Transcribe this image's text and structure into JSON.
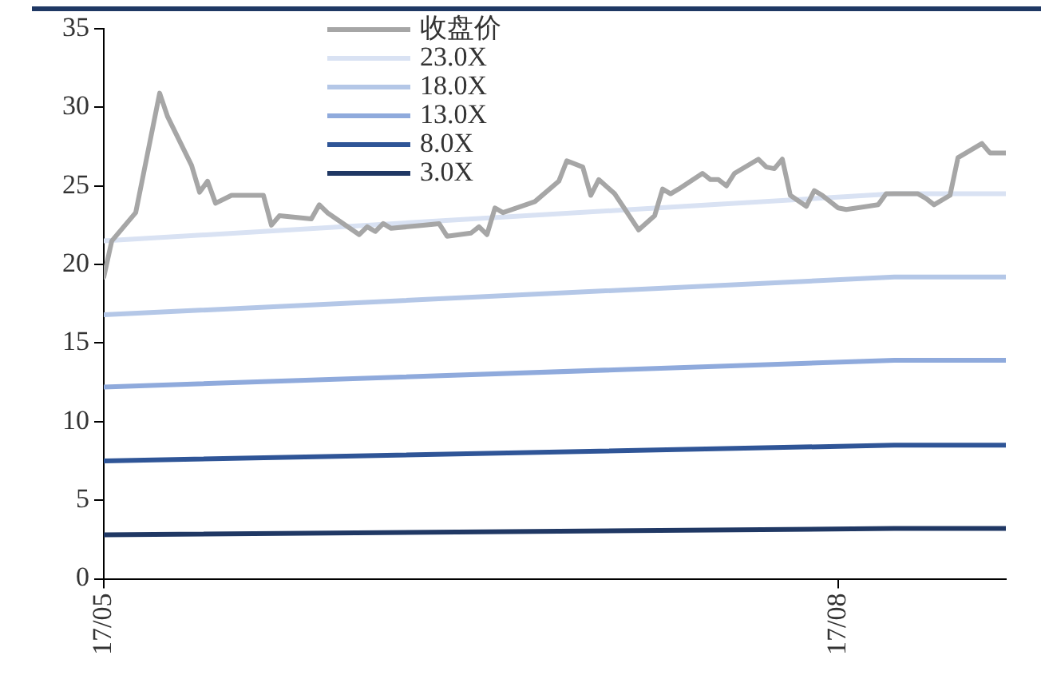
{
  "chart_data": {
    "type": "line",
    "xlim": [
      "--05-01",
      "--08-22"
    ],
    "xticks": [
      {
        "value": "--05-01",
        "label": "17/05"
      },
      {
        "value": "--08-01",
        "label": "17/08"
      }
    ],
    "ylim": [
      0,
      35
    ],
    "yticks": [
      0,
      5,
      10,
      15,
      20,
      25,
      30,
      35
    ],
    "grid": false,
    "legend": "top",
    "marker": "none",
    "line_style": "solid",
    "series": [
      {
        "name": "收盘价",
        "color": "#a6a6a6",
        "x": [
          "--05-01",
          "--05-02",
          "--05-05",
          "--05-08",
          "--05-09",
          "--05-12",
          "--05-13",
          "--05-14",
          "--05-15",
          "--05-17",
          "--05-21",
          "--05-22",
          "--05-23",
          "--05-27",
          "--05-28",
          "--05-29",
          "--06-02",
          "--06-03",
          "--06-04",
          "--06-05",
          "--06-06",
          "--06-10",
          "--06-12",
          "--06-13",
          "--06-16",
          "--06-17",
          "--06-18",
          "--06-19",
          "--06-20",
          "--06-24",
          "--06-27",
          "--06-28",
          "--06-30",
          "--07-01",
          "--07-02",
          "--07-04",
          "--07-07",
          "--07-09",
          "--07-10",
          "--07-11",
          "--07-12",
          "--07-15",
          "--07-16",
          "--07-17",
          "--07-18",
          "--07-19",
          "--07-22",
          "--07-23",
          "--07-24",
          "--07-25",
          "--07-26",
          "--07-28",
          "--07-29",
          "--07-30",
          "--08-01",
          "--08-02",
          "--08-06",
          "--08-07",
          "--08-11",
          "--08-12",
          "--08-13",
          "--08-15",
          "--08-16",
          "--08-19",
          "--08-20",
          "--08-22"
        ],
        "values": [
          19.2,
          21.5,
          23.3,
          30.9,
          29.4,
          26.3,
          24.6,
          25.3,
          23.9,
          24.4,
          24.4,
          22.5,
          23.1,
          22.9,
          23.8,
          23.3,
          21.9,
          22.4,
          22.1,
          22.6,
          22.3,
          22.5,
          22.6,
          21.8,
          22.0,
          22.4,
          21.9,
          23.6,
          23.3,
          24.0,
          25.3,
          26.6,
          26.2,
          24.4,
          25.4,
          24.5,
          22.2,
          23.1,
          24.8,
          24.5,
          24.8,
          25.8,
          25.4,
          25.4,
          25.0,
          25.8,
          26.7,
          26.2,
          26.1,
          26.7,
          24.4,
          23.7,
          24.7,
          24.4,
          23.6,
          23.5,
          23.8,
          24.5,
          24.5,
          24.2,
          23.8,
          24.4,
          26.8,
          27.7,
          27.1,
          27.1
        ]
      },
      {
        "name": "23.0X",
        "color": "#d9e2f3",
        "x": [
          "--05-01",
          "--08-08",
          "--08-22"
        ],
        "values": [
          21.5,
          24.5,
          24.5
        ]
      },
      {
        "name": "18.0X",
        "color": "#b4c7e7",
        "x": [
          "--05-01",
          "--08-08",
          "--08-22"
        ],
        "values": [
          16.8,
          19.2,
          19.2
        ]
      },
      {
        "name": "13.0X",
        "color": "#8faadc",
        "x": [
          "--05-01",
          "--08-08",
          "--08-22"
        ],
        "values": [
          12.2,
          13.9,
          13.9
        ]
      },
      {
        "name": "8.0X",
        "color": "#2f5597",
        "x": [
          "--05-01",
          "--08-08",
          "--08-22"
        ],
        "values": [
          7.5,
          8.5,
          8.5
        ]
      },
      {
        "name": "3.0X",
        "color": "#203864",
        "x": [
          "--05-01",
          "--08-08",
          "--08-22"
        ],
        "values": [
          2.8,
          3.2,
          3.2
        ]
      }
    ]
  }
}
